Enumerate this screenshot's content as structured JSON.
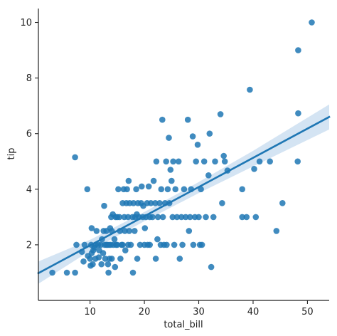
{
  "chart_data": {
    "type": "scatter",
    "title": "",
    "xlabel": "total_bill",
    "ylabel": "tip",
    "xlim": [
      0.5,
      54
    ],
    "ylim": [
      0,
      10.5
    ],
    "xticks": [
      10,
      20,
      30,
      40,
      50
    ],
    "yticks": [
      2,
      4,
      6,
      8,
      10
    ],
    "grid": false,
    "colors": {
      "points": "#1f77b4",
      "line": "#1f77b4",
      "band": "#c6dbef"
    },
    "regression": {
      "type": "linear",
      "line": [
        [
          0.5,
          0.98
        ],
        [
          54,
          6.6
        ]
      ],
      "ci_upper": [
        [
          0.5,
          1.4
        ],
        [
          10,
          2.18
        ],
        [
          20,
          3.18
        ],
        [
          30,
          4.26
        ],
        [
          40,
          5.38
        ],
        [
          54,
          7.05
        ]
      ],
      "ci_lower": [
        [
          0.5,
          0.6
        ],
        [
          10,
          1.78
        ],
        [
          20,
          2.85
        ],
        [
          30,
          3.86
        ],
        [
          40,
          4.82
        ],
        [
          54,
          6.15
        ]
      ]
    },
    "points": [
      [
        3.07,
        1.0
      ],
      [
        5.75,
        1.0
      ],
      [
        7.25,
        1.0
      ],
      [
        7.25,
        5.15
      ],
      [
        7.5,
        2.0
      ],
      [
        8.5,
        1.75
      ],
      [
        8.8,
        1.4
      ],
      [
        9.0,
        2.0
      ],
      [
        9.5,
        4.0
      ],
      [
        9.6,
        1.6
      ],
      [
        10.0,
        1.5
      ],
      [
        10.1,
        1.25
      ],
      [
        10.2,
        2.0
      ],
      [
        10.3,
        1.7
      ],
      [
        10.3,
        2.6
      ],
      [
        10.5,
        1.3
      ],
      [
        10.6,
        1.8
      ],
      [
        10.8,
        1.9
      ],
      [
        11.0,
        2.0
      ],
      [
        11.0,
        1.5
      ],
      [
        11.2,
        2.5
      ],
      [
        11.5,
        2.0
      ],
      [
        11.6,
        1.55
      ],
      [
        11.7,
        1.8
      ],
      [
        12.0,
        2.0
      ],
      [
        12.1,
        1.3
      ],
      [
        12.2,
        2.2
      ],
      [
        12.4,
        1.7
      ],
      [
        12.5,
        2.5
      ],
      [
        12.6,
        3.4
      ],
      [
        12.7,
        2.0
      ],
      [
        12.8,
        1.5
      ],
      [
        13.0,
        2.0
      ],
      [
        13.0,
        2.5
      ],
      [
        13.2,
        2.0
      ],
      [
        13.3,
        1.3
      ],
      [
        13.4,
        1.0
      ],
      [
        13.5,
        2.0
      ],
      [
        13.6,
        1.5
      ],
      [
        13.7,
        2.6
      ],
      [
        13.8,
        2.0
      ],
      [
        13.9,
        3.0
      ],
      [
        14.0,
        2.5
      ],
      [
        14.0,
        1.5
      ],
      [
        14.2,
        3.1
      ],
      [
        14.3,
        2.0
      ],
      [
        14.5,
        2.2
      ],
      [
        14.6,
        1.2
      ],
      [
        14.7,
        3.0
      ],
      [
        14.8,
        2.0
      ],
      [
        15.0,
        3.0
      ],
      [
        15.0,
        2.0
      ],
      [
        15.2,
        4.0
      ],
      [
        15.4,
        3.0
      ],
      [
        15.5,
        2.5
      ],
      [
        15.6,
        1.5
      ],
      [
        15.8,
        2.0
      ],
      [
        16.0,
        3.5
      ],
      [
        16.0,
        2.0
      ],
      [
        16.2,
        4.0
      ],
      [
        16.3,
        3.0
      ],
      [
        16.4,
        2.5
      ],
      [
        16.5,
        1.8
      ],
      [
        16.7,
        3.5
      ],
      [
        16.8,
        4.0
      ],
      [
        17.0,
        3.0
      ],
      [
        17.0,
        2.0
      ],
      [
        17.1,
        4.3
      ],
      [
        17.2,
        2.5
      ],
      [
        17.3,
        3.5
      ],
      [
        17.5,
        2.0
      ],
      [
        17.8,
        3.0
      ],
      [
        17.9,
        1.0
      ],
      [
        18.0,
        3.5
      ],
      [
        18.2,
        2.5
      ],
      [
        18.3,
        3.0
      ],
      [
        18.5,
        4.0
      ],
      [
        18.6,
        3.1
      ],
      [
        18.7,
        1.5
      ],
      [
        18.8,
        3.5
      ],
      [
        19.0,
        3.0
      ],
      [
        19.2,
        2.0
      ],
      [
        19.4,
        3.5
      ],
      [
        19.5,
        4.1
      ],
      [
        19.7,
        3.0
      ],
      [
        19.8,
        3.4
      ],
      [
        20.0,
        2.0
      ],
      [
        20.1,
        2.6
      ],
      [
        20.3,
        3.0
      ],
      [
        20.5,
        3.5
      ],
      [
        20.6,
        2.0
      ],
      [
        20.8,
        4.1
      ],
      [
        21.0,
        3.0
      ],
      [
        21.0,
        2.0
      ],
      [
        21.2,
        3.5
      ],
      [
        21.5,
        3.0
      ],
      [
        21.7,
        4.3
      ],
      [
        22.0,
        3.5
      ],
      [
        22.1,
        1.5
      ],
      [
        22.2,
        5.0
      ],
      [
        22.4,
        2.2
      ],
      [
        22.5,
        3.0
      ],
      [
        22.8,
        3.5
      ],
      [
        23.0,
        2.0
      ],
      [
        23.1,
        4.0
      ],
      [
        23.3,
        6.5
      ],
      [
        23.4,
        3.0
      ],
      [
        23.6,
        2.0
      ],
      [
        23.8,
        3.5
      ],
      [
        24.0,
        5.0
      ],
      [
        24.1,
        2.0
      ],
      [
        24.3,
        4.0
      ],
      [
        24.5,
        5.85
      ],
      [
        24.6,
        3.5
      ],
      [
        24.8,
        4.7
      ],
      [
        25.0,
        4.3
      ],
      [
        25.2,
        3.0
      ],
      [
        25.3,
        5.0
      ],
      [
        25.5,
        2.0
      ],
      [
        25.7,
        4.0
      ],
      [
        26.0,
        3.0
      ],
      [
        26.3,
        5.0
      ],
      [
        26.5,
        1.5
      ],
      [
        26.8,
        3.0
      ],
      [
        27.0,
        2.0
      ],
      [
        27.3,
        4.0
      ],
      [
        27.6,
        3.0
      ],
      [
        28.0,
        6.5
      ],
      [
        28.2,
        2.5
      ],
      [
        28.4,
        3.0
      ],
      [
        28.6,
        4.0
      ],
      [
        28.9,
        5.9
      ],
      [
        29.0,
        2.0
      ],
      [
        29.3,
        3.0
      ],
      [
        29.5,
        5.0
      ],
      [
        29.8,
        5.6
      ],
      [
        30.0,
        3.0
      ],
      [
        30.2,
        2.0
      ],
      [
        30.4,
        4.0
      ],
      [
        30.6,
        2.0
      ],
      [
        31.0,
        5.0
      ],
      [
        31.3,
        3.0
      ],
      [
        31.8,
        4.5
      ],
      [
        32.0,
        6.0
      ],
      [
        32.3,
        1.2
      ],
      [
        32.7,
        3.0
      ],
      [
        33.0,
        5.0
      ],
      [
        34.0,
        6.7
      ],
      [
        34.3,
        3.5
      ],
      [
        34.6,
        5.2
      ],
      [
        34.8,
        5.0
      ],
      [
        35.3,
        4.67
      ],
      [
        38.0,
        3.0
      ],
      [
        38.0,
        4.0
      ],
      [
        38.8,
        3.0
      ],
      [
        39.4,
        7.58
      ],
      [
        40.2,
        4.73
      ],
      [
        40.5,
        3.0
      ],
      [
        41.2,
        5.0
      ],
      [
        43.1,
        5.0
      ],
      [
        44.3,
        2.5
      ],
      [
        45.4,
        3.5
      ],
      [
        48.2,
        5.0
      ],
      [
        48.3,
        6.73
      ],
      [
        48.3,
        9.0
      ],
      [
        50.8,
        10.0
      ]
    ]
  }
}
